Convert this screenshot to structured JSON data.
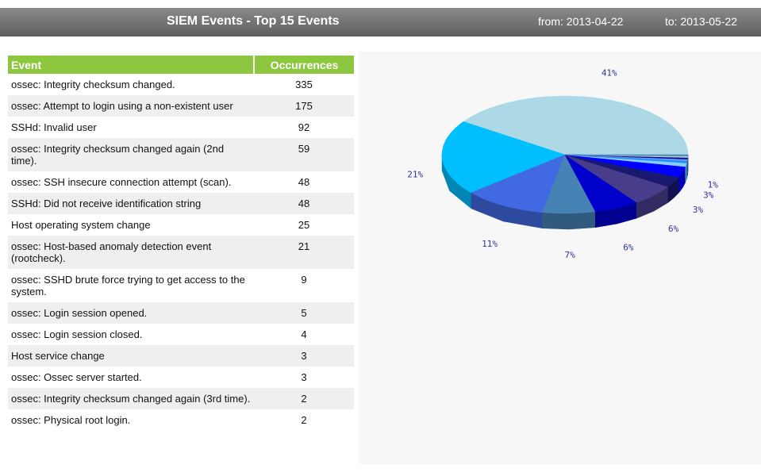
{
  "header": {
    "title": "SIEM Events - Top 15 Events",
    "from": "from: 2013-04-22",
    "to": "to: 2013-05-22"
  },
  "table": {
    "columns": [
      "Event",
      "Occurrences"
    ],
    "rows": [
      [
        "ossec: Integrity checksum changed.",
        335
      ],
      [
        "ossec: Attempt to login using a non-existent user",
        175
      ],
      [
        "SSHd: Invalid user",
        92
      ],
      [
        "ossec: Integrity checksum changed again (2nd time).",
        59
      ],
      [
        "ossec: SSH insecure connection attempt (scan).",
        48
      ],
      [
        "SSHd: Did not receive identification string",
        48
      ],
      [
        "Host operating system change",
        25
      ],
      [
        "ossec: Host-based anomaly detection event (rootcheck).",
        21
      ],
      [
        "ossec: SSHD brute force trying to get access to the system.",
        9
      ],
      [
        "ossec: Login session opened.",
        5
      ],
      [
        "ossec: Login session closed.",
        4
      ],
      [
        "Host service change",
        3
      ],
      [
        "ossec: Ossec server started.",
        3
      ],
      [
        "ossec: Integrity checksum changed again (3rd time).",
        2
      ],
      [
        "ossec: Physical root login.",
        2
      ]
    ]
  },
  "chart_data": {
    "type": "pie",
    "values": [
      41,
      21,
      11,
      7,
      6,
      6,
      3,
      3,
      1,
      0.6,
      0.5,
      0.4,
      0.4,
      0.2,
      0.2
    ],
    "value_labels": [
      "41%",
      "21%",
      "11%",
      "7%",
      "6%",
      "6%",
      "3%",
      "3%",
      "1%",
      null,
      null,
      null,
      null,
      null,
      null
    ],
    "colors": [
      "#add8e6",
      "#00bfff",
      "#4169e1",
      "#4682b4",
      "#0000cd",
      "#483d8b",
      "#191970",
      "#0000ff",
      "#87cefa",
      "#1e90ff",
      "#6495ed",
      "#00008b",
      "#b0c4de",
      "#5f9ea0",
      "#4682b4"
    ]
  }
}
